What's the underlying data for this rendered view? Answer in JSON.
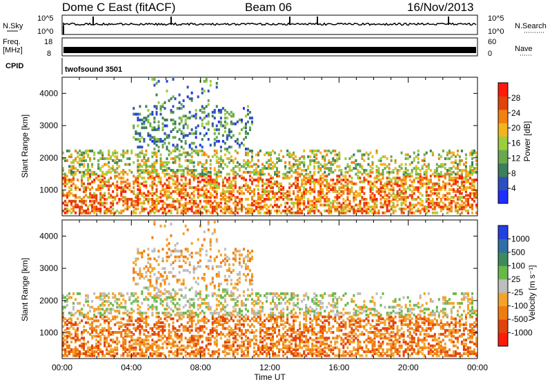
{
  "header": {
    "station": "Dome C East (fitACF)",
    "beam": "Beam 06",
    "date": "16/Nov/2013"
  },
  "labels": {
    "nsky": "N.Sky",
    "nsearch": "N.Search",
    "freq_top": "Freq.",
    "freq_unit": "[MHz]",
    "nave": "Nave",
    "cpid": "CPID",
    "cpid_value": "twofsound 3501",
    "xlabel": "Time UT"
  },
  "noise_panel": {
    "left_ticks": [
      "10^5",
      "10^0"
    ],
    "right_ticks": [
      "10^5",
      "10^0"
    ]
  },
  "freq_panel": {
    "left_ticks": [
      "18",
      "8"
    ],
    "right_ticks": [
      "60",
      "0"
    ]
  },
  "chart_data": [
    {
      "type": "heatmap",
      "name": "power",
      "xlabel": "Time UT",
      "ylabel": "Slant Range [km]",
      "xlim": [
        0,
        24
      ],
      "ylim": [
        200,
        4500
      ],
      "x_ticks": [
        "00:00",
        "04:00",
        "08:00",
        "12:00",
        "16:00",
        "20:00",
        "00:00"
      ],
      "y_ticks": [
        1000,
        2000,
        3000,
        4000
      ],
      "colorbar": {
        "label": "Power [dB]",
        "range": [
          0,
          32
        ],
        "ticks": [
          4,
          8,
          12,
          16,
          20,
          24,
          28
        ],
        "colors": [
          "#1f2dff",
          "#2c4fbf",
          "#3d7f5a",
          "#6aa84f",
          "#9ccd3c",
          "#f3b51c",
          "#f57f0f",
          "#e3430c",
          "#ff1a0a"
        ]
      }
    },
    {
      "type": "heatmap",
      "name": "velocity",
      "xlabel": "Time UT",
      "ylabel": "Slant Range [km]",
      "xlim": [
        0,
        24
      ],
      "ylim": [
        200,
        4500
      ],
      "x_ticks": [
        "00:00",
        "04:00",
        "08:00",
        "12:00",
        "16:00",
        "20:00",
        "00:00"
      ],
      "y_ticks": [
        1000,
        2000,
        3000,
        4000
      ],
      "colorbar": {
        "label": "Velocity [m s⁻¹]",
        "tick_labels": [
          "1000",
          "500",
          "100",
          "25",
          "-25",
          "-100",
          "-500",
          "-1000"
        ],
        "colors": [
          "#2340e0",
          "#2f6fa8",
          "#3e8a5c",
          "#69b84a",
          "#bdbdbd",
          "#f2a32c",
          "#f07c0d",
          "#e2430c",
          "#ff1a0a"
        ]
      }
    }
  ]
}
